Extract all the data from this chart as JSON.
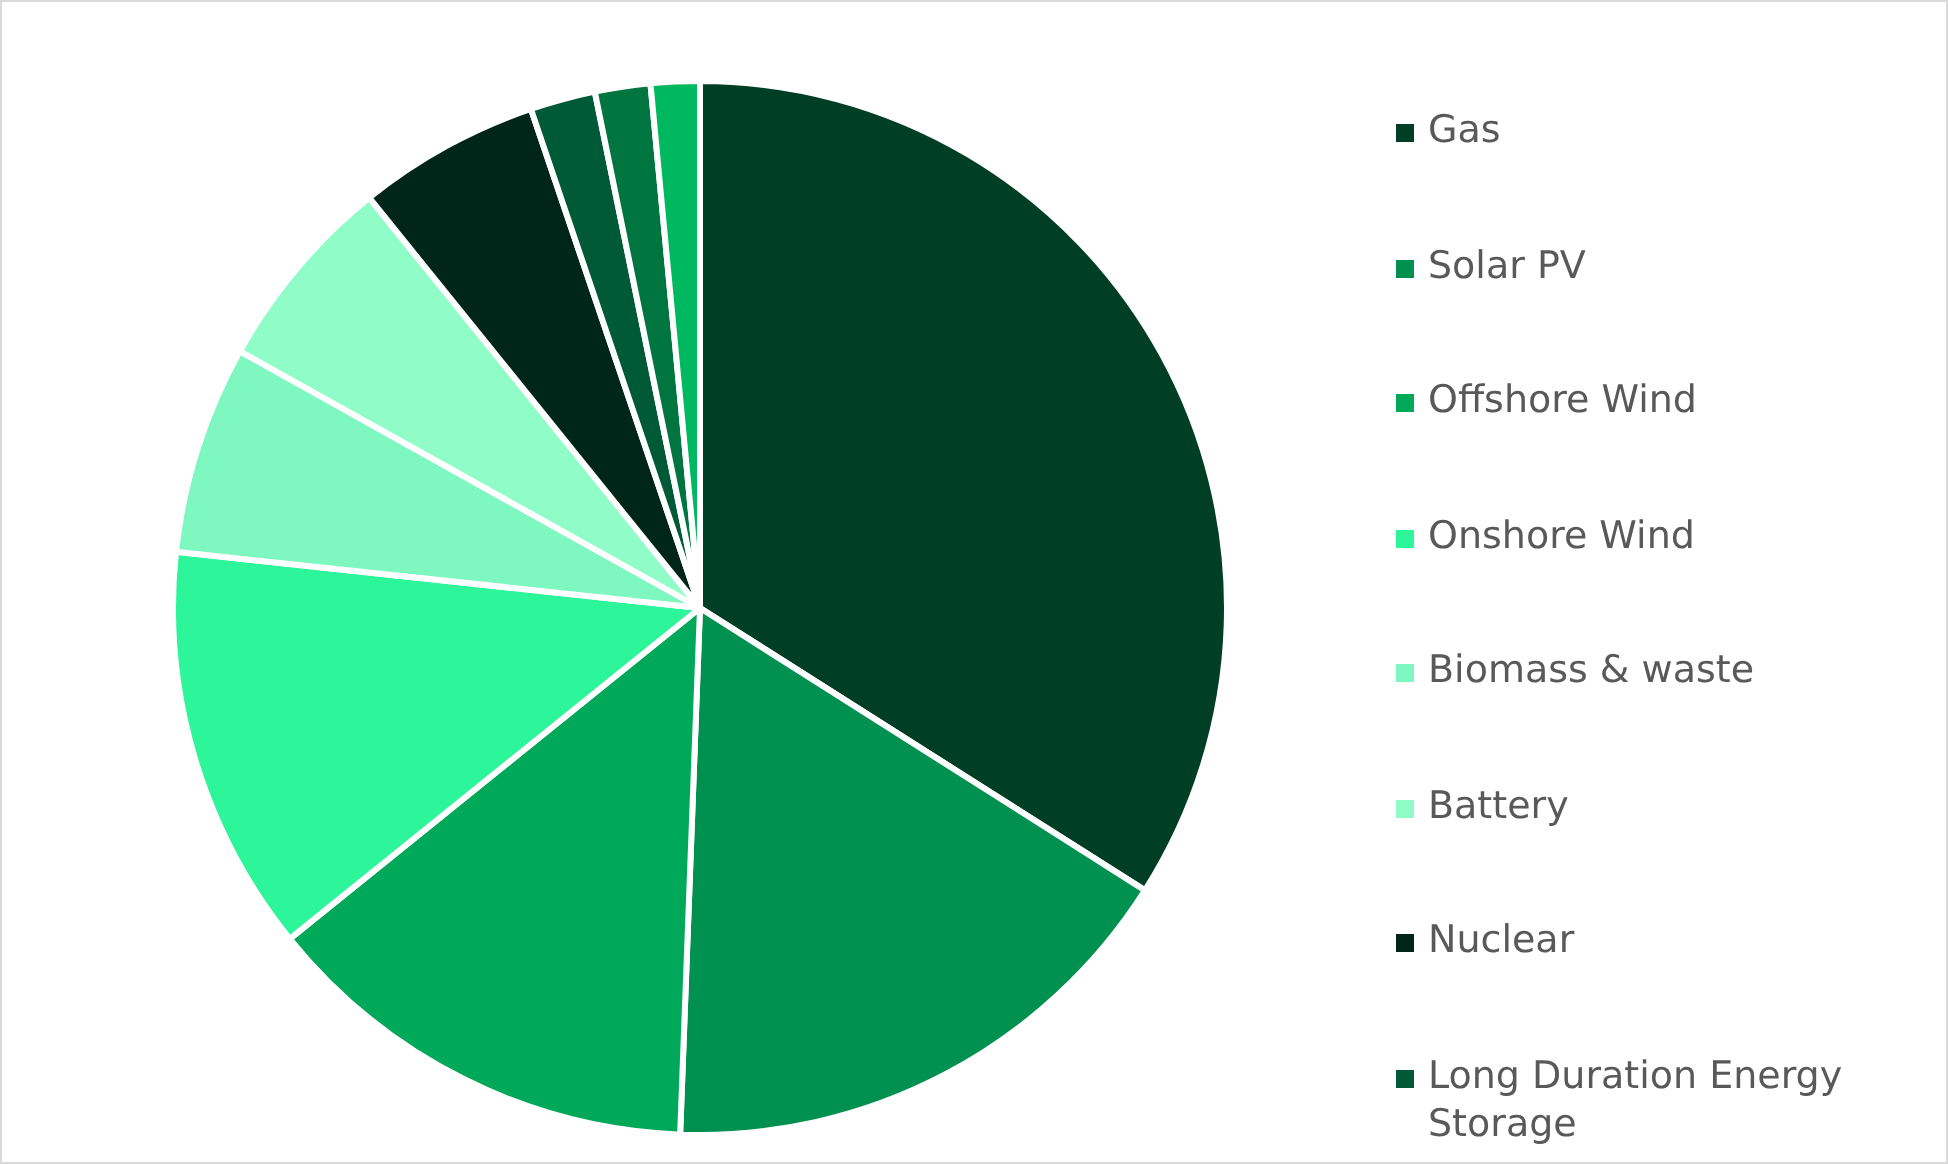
{
  "chart_data": {
    "type": "pie",
    "categories": [
      "Gas",
      "Solar PV",
      "Offshore Wind",
      "Onshore Wind",
      "Biomass & waste",
      "Battery",
      "Nuclear",
      "Long Duration Energy Storage",
      null,
      null
    ],
    "values": [
      34.0,
      16.6,
      13.6,
      12.5,
      6.4,
      6.1,
      5.6,
      2.0,
      1.7,
      1.5
    ],
    "colors": [
      "#003f26",
      "#009050",
      "#00a85a",
      "#2cf59a",
      "#7ef7c0",
      "#90fcc8",
      "#00261a",
      "#005a38",
      "#00753f",
      "#00b860"
    ],
    "legend": "right"
  }
}
